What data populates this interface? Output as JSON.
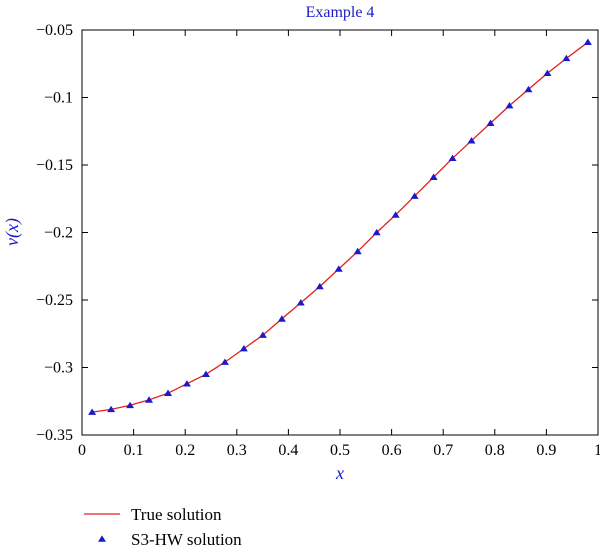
{
  "chart_data": {
    "type": "line",
    "title": "Example 4",
    "xlabel": "x",
    "ylabel": "v(x)",
    "xlim": [
      0,
      1
    ],
    "ylim": [
      -0.35,
      -0.05
    ],
    "x_ticks": [
      0,
      0.1,
      0.2,
      0.3,
      0.4,
      0.5,
      0.6,
      0.7,
      0.8,
      0.9,
      1
    ],
    "x_tick_labels": [
      "0",
      "0.1",
      "0.2",
      "0.3",
      "0.4",
      "0.5",
      "0.6",
      "0.7",
      "0.8",
      "0.9",
      "1"
    ],
    "y_ticks": [
      -0.35,
      -0.3,
      -0.25,
      -0.2,
      -0.15,
      -0.1,
      -0.05
    ],
    "y_tick_labels": [
      "−0.35",
      "−0.3",
      "−0.25",
      "−0.2",
      "−0.15",
      "−0.1",
      "−0.05"
    ],
    "grid": false,
    "legend_placement": "bottom-left, below plot",
    "colors": {
      "title": "#1a1acc",
      "axis_label": "#1a1acc",
      "true_line": "#e02020",
      "markers": "#1a1acc",
      "frame": "#000000"
    },
    "series": [
      {
        "name": "True solution",
        "style": "line",
        "x": [
          0.0196,
          0.0564,
          0.0931,
          0.1299,
          0.1667,
          0.2034,
          0.2402,
          0.277,
          0.3137,
          0.3505,
          0.3873,
          0.424,
          0.4608,
          0.4975,
          0.5343,
          0.5711,
          0.6078,
          0.6446,
          0.6814,
          0.7181,
          0.7549,
          0.7917,
          0.8284,
          0.8652,
          0.902,
          0.9387,
          0.9804
        ],
        "y": [
          -0.333,
          -0.331,
          -0.328,
          -0.324,
          -0.319,
          -0.312,
          -0.305,
          -0.296,
          -0.286,
          -0.276,
          -0.264,
          -0.252,
          -0.24,
          -0.227,
          -0.214,
          -0.2,
          -0.187,
          -0.173,
          -0.159,
          -0.145,
          -0.132,
          -0.119,
          -0.106,
          -0.094,
          -0.082,
          -0.071,
          -0.059
        ]
      },
      {
        "name": "S3-HW solution",
        "style": "triangle-markers",
        "x": [
          0.0196,
          0.0564,
          0.0931,
          0.1299,
          0.1667,
          0.2034,
          0.2402,
          0.277,
          0.3137,
          0.3505,
          0.3873,
          0.424,
          0.4608,
          0.4975,
          0.5343,
          0.5711,
          0.6078,
          0.6446,
          0.6814,
          0.7181,
          0.7549,
          0.7917,
          0.8284,
          0.8652,
          0.902,
          0.9387,
          0.9804
        ],
        "y": [
          -0.333,
          -0.331,
          -0.328,
          -0.324,
          -0.319,
          -0.312,
          -0.305,
          -0.296,
          -0.286,
          -0.276,
          -0.264,
          -0.252,
          -0.24,
          -0.227,
          -0.214,
          -0.2,
          -0.187,
          -0.173,
          -0.159,
          -0.145,
          -0.132,
          -0.119,
          -0.106,
          -0.094,
          -0.082,
          -0.071,
          -0.059
        ]
      }
    ]
  }
}
